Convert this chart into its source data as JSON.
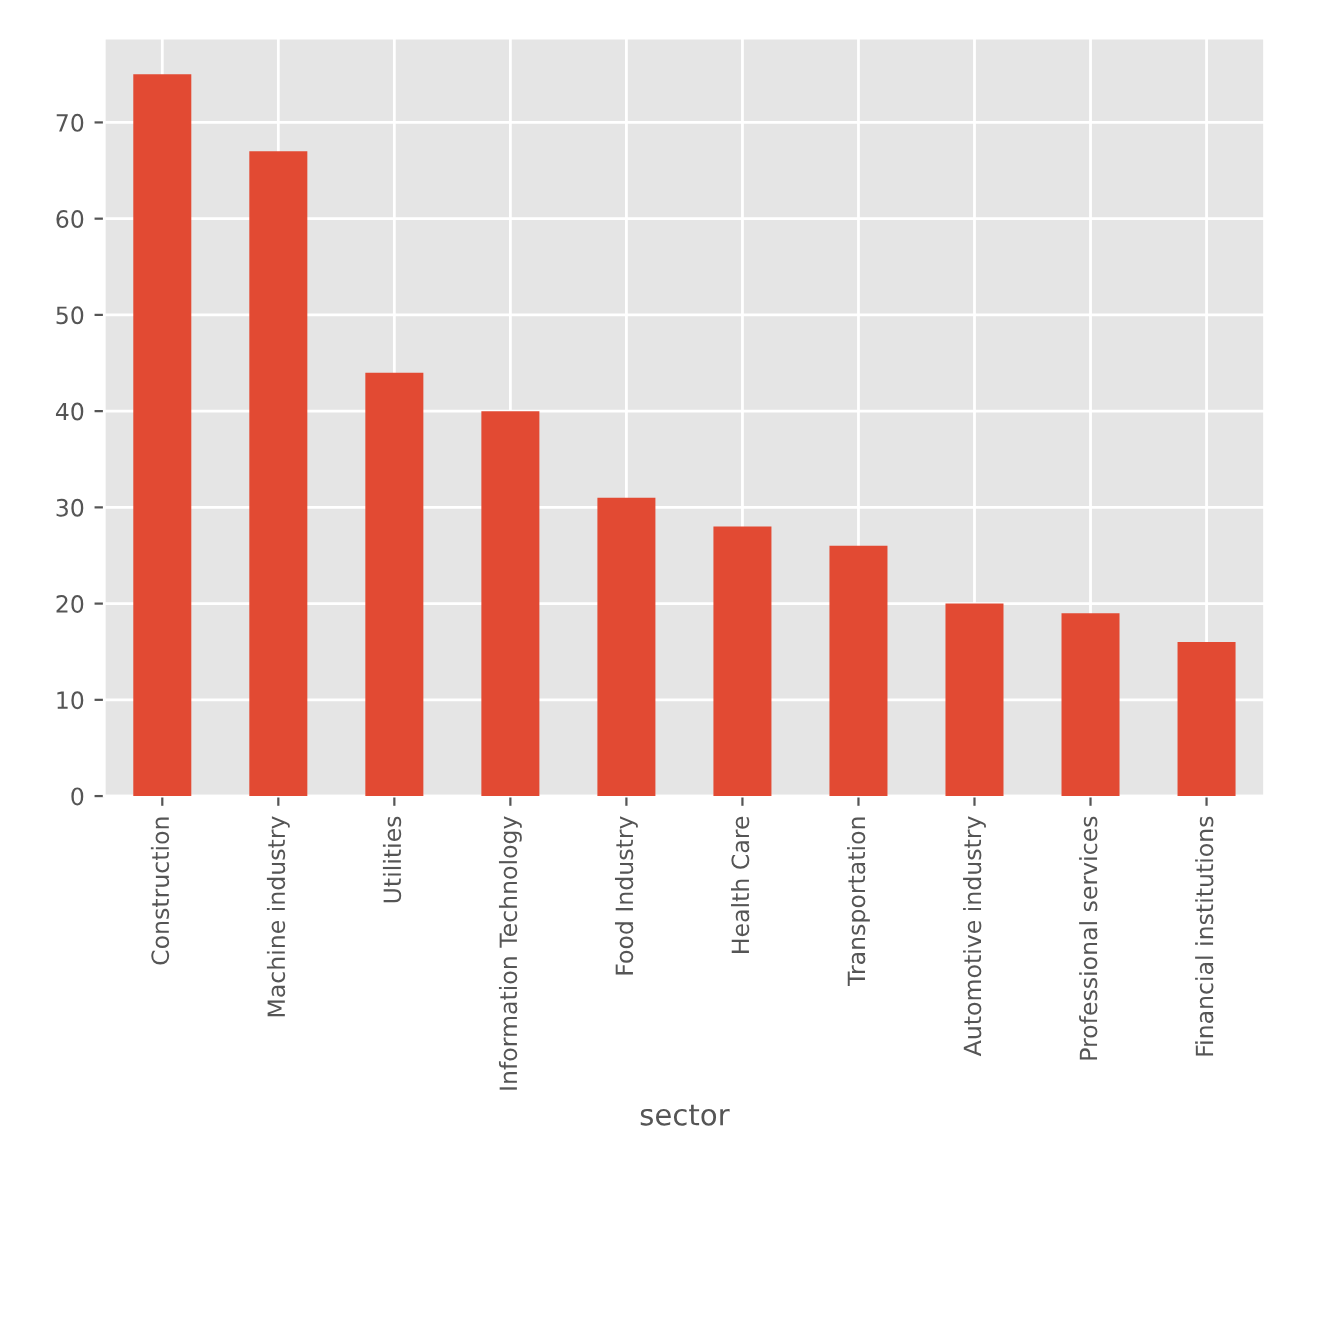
{
  "chart_data": {
    "type": "bar",
    "xlabel": "sector",
    "categories": [
      "Construction",
      "Machine industry",
      "Utilities",
      "Information Technology",
      "Food Industry",
      "Health Care",
      "Transportation",
      "Automotive industry",
      "Professional services",
      "Financial institutions"
    ],
    "values": [
      75,
      67,
      44,
      40,
      31,
      28,
      26,
      20,
      19,
      16
    ],
    "color": "#e24a33",
    "ylim": [
      0,
      78.75
    ],
    "yticks": [
      0,
      10,
      20,
      30,
      40,
      50,
      60,
      70
    ],
    "grid": true
  }
}
